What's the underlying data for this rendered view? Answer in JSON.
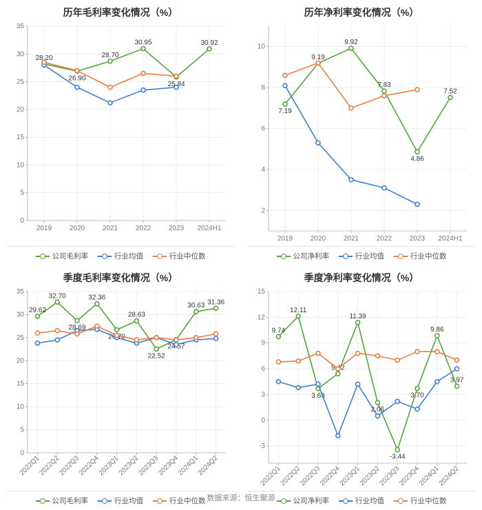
{
  "colors": {
    "company": "#52a638",
    "industry_avg": "#3d7fd6",
    "industry_med": "#ee7b3e",
    "axis": "#888888",
    "grid": "#e5e5e5",
    "text": "#777777",
    "bg": "#ffffff"
  },
  "legend_labels": {
    "company_gross": "公司毛利率",
    "company_net": "公司净利率",
    "industry_avg": "行业均值",
    "industry_med": "行业中位数"
  },
  "panels": [
    {
      "key": "gross_annual",
      "title": "历年毛利率变化情况（%）",
      "type": "line",
      "categories": [
        "2019",
        "2020",
        "2021",
        "2022",
        "2023",
        "2024H1"
      ],
      "rotate_x": false,
      "ylim": [
        0,
        35
      ],
      "ytick_step": 5,
      "series": [
        {
          "role": "company",
          "stroke": "#52a638",
          "values": [
            28.2,
            26.9,
            28.7,
            30.95,
            25.84,
            30.92
          ],
          "labels_idx": [
            0,
            1,
            2,
            3,
            4,
            5
          ],
          "label_pos": [
            "above",
            "below",
            "above",
            "above",
            "below",
            "above"
          ]
        },
        {
          "role": "industry_avg",
          "stroke": "#3d7fd6",
          "values": [
            28.0,
            24.0,
            21.2,
            23.5,
            24.0,
            null
          ]
        },
        {
          "role": "industry_med",
          "stroke": "#ee7b3e",
          "values": [
            28.5,
            27.0,
            24.0,
            26.5,
            26.0,
            null
          ]
        }
      ]
    },
    {
      "key": "net_annual",
      "title": "历年净利率变化情况（%）",
      "type": "line",
      "categories": [
        "2019",
        "2020",
        "2021",
        "2022",
        "2023",
        "2024H1"
      ],
      "rotate_x": false,
      "ylim": [
        1,
        11
      ],
      "ytick_step": 2,
      "ytick_start": 2,
      "series": [
        {
          "role": "company",
          "stroke": "#52a638",
          "values": [
            7.19,
            9.19,
            9.92,
            7.83,
            4.86,
            7.52
          ],
          "labels_idx": [
            0,
            1,
            2,
            3,
            4,
            5
          ],
          "label_pos": [
            "below",
            "above",
            "above",
            "above",
            "below",
            "above"
          ]
        },
        {
          "role": "industry_avg",
          "stroke": "#3d7fd6",
          "values": [
            8.1,
            5.3,
            3.5,
            3.1,
            2.3,
            null
          ]
        },
        {
          "role": "industry_med",
          "stroke": "#ee7b3e",
          "values": [
            8.6,
            9.2,
            7.0,
            7.6,
            7.9,
            null
          ]
        }
      ]
    },
    {
      "key": "gross_quarterly",
      "title": "季度毛利率变化情况（%）",
      "type": "line",
      "categories": [
        "2022Q1",
        "2022Q2",
        "2022Q3",
        "2022Q4",
        "2023Q1",
        "2023Q2",
        "2023Q3",
        "2023Q4",
        "2024Q1",
        "2024Q2"
      ],
      "rotate_x": true,
      "ylim": [
        0,
        35
      ],
      "ytick_step": 5,
      "series": [
        {
          "role": "company",
          "stroke": "#52a638",
          "values": [
            29.62,
            32.7,
            28.69,
            32.36,
            26.7,
            28.63,
            22.52,
            24.57,
            30.63,
            31.36
          ],
          "labels_idx": [
            0,
            1,
            2,
            3,
            4,
            5,
            6,
            7,
            8,
            9
          ],
          "label_pos": [
            "above",
            "above",
            "below",
            "above",
            "below",
            "above",
            "below",
            "below",
            "above",
            "above"
          ]
        },
        {
          "role": "industry_avg",
          "stroke": "#3d7fd6",
          "values": [
            23.8,
            24.5,
            26.5,
            26.8,
            25.0,
            23.8,
            25.0,
            23.5,
            24.5,
            24.8
          ]
        },
        {
          "role": "industry_med",
          "stroke": "#ee7b3e",
          "values": [
            26.0,
            26.5,
            25.8,
            27.5,
            25.5,
            24.5,
            25.0,
            24.5,
            25.0,
            25.8
          ]
        }
      ]
    },
    {
      "key": "net_quarterly",
      "title": "季度净利率变化情况（%）",
      "type": "line",
      "categories": [
        "2022Q1",
        "2022Q2",
        "2022Q3",
        "2022Q4",
        "2023Q1",
        "2023Q2",
        "2023Q3",
        "2023Q4",
        "2024Q1",
        "2024Q2"
      ],
      "rotate_x": true,
      "ylim": [
        -5,
        15
      ],
      "ytick_step": 3,
      "ytick_start": -3,
      "series": [
        {
          "role": "company",
          "stroke": "#52a638",
          "values": [
            9.74,
            12.11,
            3.69,
            5.42,
            11.39,
            2.06,
            -3.44,
            3.7,
            9.86,
            3.97
          ],
          "labels_idx": [
            0,
            1,
            2,
            3,
            4,
            5,
            6,
            7,
            8,
            9
          ],
          "label_pos": [
            "above",
            "above",
            "below",
            "above",
            "above",
            "below",
            "below",
            "below",
            "above",
            "above"
          ]
        },
        {
          "role": "industry_avg",
          "stroke": "#3d7fd6",
          "values": [
            4.5,
            3.8,
            4.2,
            -1.8,
            4.2,
            0.5,
            2.2,
            1.3,
            4.5,
            6.0
          ]
        },
        {
          "role": "industry_med",
          "stroke": "#ee7b3e",
          "values": [
            6.8,
            6.9,
            7.8,
            6.0,
            7.8,
            7.5,
            7.0,
            8.0,
            8.0,
            7.0
          ]
        }
      ]
    }
  ],
  "footer": "数据来源：恒生聚源"
}
